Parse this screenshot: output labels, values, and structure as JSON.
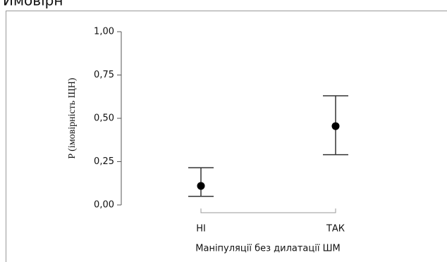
{
  "chart_data": {
    "type": "errorbar",
    "title": "Ймовірн",
    "y_label": "P (імовірність ЩН)",
    "x_label": "Маніпуляції без дилатації ШМ",
    "categories": [
      "НІ",
      "ТАК"
    ],
    "values": [
      0.11,
      0.455
    ],
    "lower": [
      0.05,
      0.29
    ],
    "upper": [
      0.215,
      0.63
    ],
    "color": "#000000",
    "ylim": [
      0,
      1
    ],
    "yticks": [
      {
        "value": 0,
        "label": "0,00"
      },
      {
        "value": 0.25,
        "label": "0,25"
      },
      {
        "value": 0.5,
        "label": "0,50"
      },
      {
        "value": 0.75,
        "label": "0,75"
      },
      {
        "value": 1,
        "label": "1,00"
      }
    ]
  }
}
